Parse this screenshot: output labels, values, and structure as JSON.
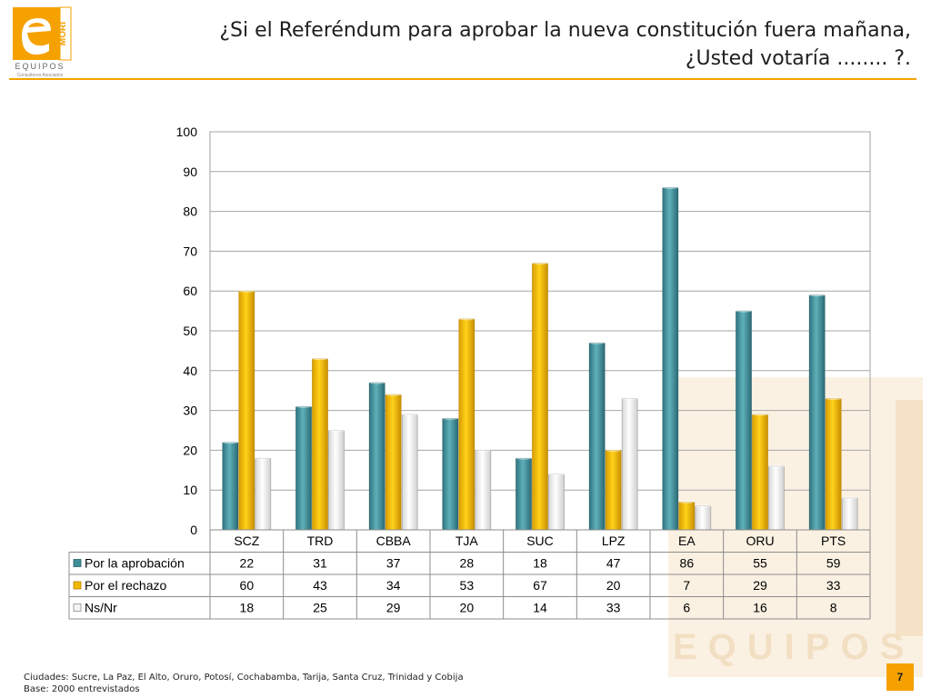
{
  "header": {
    "logo_text": [
      "MORI",
      "EQUIPOS",
      "Consultores Asociados"
    ],
    "title_line1": "¿Si el Referéndum para aprobar la nueva constitución fuera mañana,",
    "title_line2": "¿Usted votaría ........ ?."
  },
  "colors": {
    "accent": "#f5a100",
    "teal": "#3f8f99",
    "gold": "#f1b800",
    "white_bar": "#f4f4f4"
  },
  "chart_data": {
    "type": "bar",
    "title": "",
    "xlabel": "",
    "ylabel": "",
    "ylim": [
      0,
      100
    ],
    "yticks": [
      0,
      10,
      20,
      30,
      40,
      50,
      60,
      70,
      80,
      90,
      100
    ],
    "grid": true,
    "legend": "data-table",
    "categories": [
      "SCZ",
      "TRD",
      "CBBA",
      "TJA",
      "SUC",
      "LPZ",
      "EA",
      "ORU",
      "PTS"
    ],
    "series": [
      {
        "name": "Por la aprobación",
        "color": "#3f8f99",
        "values": [
          22,
          31,
          37,
          28,
          18,
          47,
          86,
          55,
          59
        ]
      },
      {
        "name": "Por el rechazo",
        "color": "#f1b800",
        "values": [
          60,
          43,
          34,
          53,
          67,
          20,
          7,
          29,
          33
        ]
      },
      {
        "name": "Ns/Nr",
        "color": "#f4f4f4",
        "values": [
          18,
          25,
          29,
          20,
          14,
          33,
          6,
          16,
          8
        ]
      }
    ]
  },
  "footer": {
    "note_line1": "Ciudades: Sucre, La Paz, El Alto, Oruro, Potosí, Cochabamba, Tarija, Santa Cruz, Trinidad y Cobija",
    "note_line2": "Base: 2000 entrevistados",
    "page_number": "7"
  }
}
